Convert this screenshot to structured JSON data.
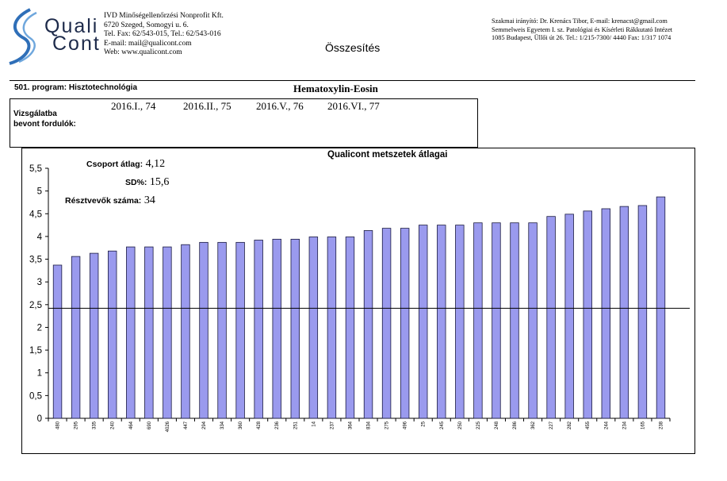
{
  "header": {
    "logo_line1": "Quali",
    "logo_line2": "Cont",
    "org_lines": [
      "IVD Minőségellenőrzési Nonprofit  Kft.",
      "6720 Szeged, Somogyi u. 6.",
      "Tel. Fax: 62/543-015, Tel.: 62/543-016",
      "E-mail: mail@qualicont.com",
      "Web: www.qualicont.com"
    ],
    "title": "Összesítés",
    "supervisor_lines": [
      "Szakmai irányító: Dr. Krenács Tibor, E-mail: krenacst@gmail.com",
      "Semmelweis Egyetem I. sz. Patológiai és Kísérleti Rákkutató Intézet",
      "1085 Budapest, Üllői út 26. Tel.: 1/215-7300/ 4440 Fax: 1/317 1074"
    ]
  },
  "program": "501. program: Hisztotechnológia",
  "stain": "Hematoxylin-Eosin",
  "rounds": {
    "label_line1": "Vizsgálatba",
    "label_line2": "bevont fordulók:",
    "items": [
      "2016.I., 74",
      "2016.II., 75",
      "2016.V., 76",
      "2016.VI., 77"
    ]
  },
  "stats": {
    "mean_label": "Csoport átlag:",
    "mean_value": "4,12",
    "sd_label": "SD%:",
    "sd_value": "15,6",
    "participants_label": "Résztvevők száma:",
    "participants_value": "34"
  },
  "colors": {
    "bar_fill": "#9a9aee",
    "bar_stroke": "#1a1a40"
  },
  "chart_data": {
    "type": "bar",
    "title": "Qualicont metszetek átlagai",
    "xlabel": "",
    "ylabel": "",
    "ylim": [
      0,
      5.5
    ],
    "ytick_step": 0.5,
    "yticks": [
      "0",
      "0,5",
      "1",
      "1,5",
      "2",
      "2,5",
      "3",
      "3,5",
      "4",
      "4,5",
      "5",
      "5,5"
    ],
    "reference_line": 2.42,
    "grid": false,
    "categories": [
      "480",
      "295",
      "335",
      "240",
      "464",
      "690",
      "4026",
      "447",
      "294",
      "334",
      "360",
      "428",
      "236",
      "251",
      "14",
      "237",
      "364",
      "834",
      "275",
      "496",
      "25",
      "245",
      "250",
      "225",
      "248",
      "286",
      "362",
      "227",
      "282",
      "455",
      "244",
      "234",
      "165",
      "238"
    ],
    "values": [
      3.37,
      3.56,
      3.63,
      3.68,
      3.77,
      3.77,
      3.77,
      3.82,
      3.87,
      3.87,
      3.87,
      3.92,
      3.94,
      3.94,
      3.99,
      3.99,
      3.99,
      4.13,
      4.18,
      4.18,
      4.25,
      4.25,
      4.25,
      4.3,
      4.3,
      4.3,
      4.3,
      4.44,
      4.49,
      4.56,
      4.61,
      4.66,
      4.68,
      4.87
    ]
  }
}
